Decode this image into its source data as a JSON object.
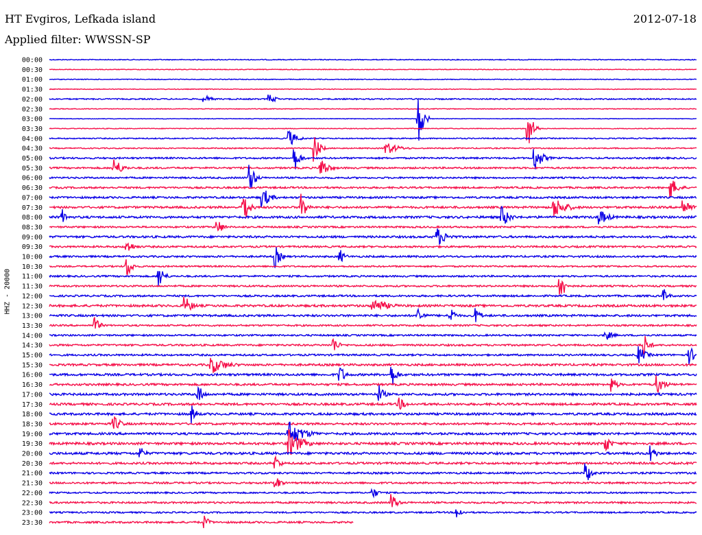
{
  "header": {
    "station": "HT Evgiros, Lefkada island",
    "date": "2012-07-18",
    "filter": "Applied filter: WWSSN-SP"
  },
  "chart_data": {
    "type": "line",
    "title": "HT Evgiros, Lefkada island",
    "ylabel": "HHZ - 20000",
    "grid": false,
    "colors": {
      "even_trace": "#0a00e6",
      "odd_trace": "#f5104a"
    },
    "rows": [
      "00:00",
      "00:30",
      "01:00",
      "01:30",
      "02:00",
      "02:30",
      "03:00",
      "03:30",
      "04:00",
      "04:30",
      "05:00",
      "05:30",
      "06:00",
      "06:30",
      "07:00",
      "07:30",
      "08:00",
      "08:30",
      "09:00",
      "09:30",
      "10:00",
      "10:30",
      "11:00",
      "11:30",
      "12:00",
      "12:30",
      "13:00",
      "13:30",
      "14:00",
      "14:30",
      "15:00",
      "15:30",
      "16:00",
      "16:30",
      "17:00",
      "17:30",
      "18:00",
      "18:30",
      "19:00",
      "19:30",
      "20:00",
      "20:30",
      "21:00",
      "21:30",
      "22:00",
      "22:30",
      "23:00",
      "23:30"
    ],
    "row_noise": [
      0.6,
      0.5,
      0.5,
      0.5,
      0.9,
      0.5,
      0.4,
      0.5,
      0.8,
      0.8,
      1.2,
      1.2,
      1.2,
      1.3,
      1.4,
      1.5,
      1.6,
      1.2,
      1.5,
      1.3,
      1.3,
      1.1,
      1.2,
      1.2,
      1.3,
      1.6,
      1.5,
      1.2,
      1.2,
      1.3,
      1.3,
      1.5,
      1.6,
      1.5,
      1.6,
      1.6,
      1.6,
      1.5,
      1.6,
      1.7,
      1.7,
      1.5,
      1.3,
      1.3,
      1.1,
      1.3,
      1.1,
      1.3
    ],
    "row_extent": [
      1,
      1,
      1,
      1,
      1,
      1,
      1,
      1,
      1,
      1,
      1,
      1,
      1,
      1,
      1,
      1,
      1,
      1,
      1,
      1,
      1,
      1,
      1,
      1,
      1,
      1,
      1,
      1,
      1,
      1,
      1,
      1,
      1,
      1,
      1,
      1,
      1,
      1,
      1,
      1,
      1,
      1,
      1,
      1,
      1,
      1,
      1,
      0.47
    ],
    "events": [
      {
        "row": 4,
        "t": 0.24,
        "amp": 6,
        "dur": 0.03
      },
      {
        "row": 4,
        "t": 0.34,
        "amp": 7,
        "dur": 0.03
      },
      {
        "row": 6,
        "t": 0.57,
        "amp": 40,
        "dur": 0.02
      },
      {
        "row": 7,
        "t": 0.74,
        "amp": 30,
        "dur": 0.02
      },
      {
        "row": 8,
        "t": 0.37,
        "amp": 14,
        "dur": 0.03
      },
      {
        "row": 9,
        "t": 0.52,
        "amp": 10,
        "dur": 0.05
      },
      {
        "row": 9,
        "t": 0.41,
        "amp": 22,
        "dur": 0.02
      },
      {
        "row": 10,
        "t": 0.38,
        "amp": 18,
        "dur": 0.02
      },
      {
        "row": 10,
        "t": 0.75,
        "amp": 20,
        "dur": 0.03
      },
      {
        "row": 11,
        "t": 0.1,
        "amp": 16,
        "dur": 0.03
      },
      {
        "row": 11,
        "t": 0.42,
        "amp": 16,
        "dur": 0.03
      },
      {
        "row": 12,
        "t": 0.31,
        "amp": 24,
        "dur": 0.02
      },
      {
        "row": 13,
        "t": 0.96,
        "amp": 16,
        "dur": 0.03
      },
      {
        "row": 14,
        "t": 0.33,
        "amp": 16,
        "dur": 0.03
      },
      {
        "row": 15,
        "t": 0.3,
        "amp": 30,
        "dur": 0.02
      },
      {
        "row": 15,
        "t": 0.39,
        "amp": 22,
        "dur": 0.02
      },
      {
        "row": 15,
        "t": 0.78,
        "amp": 16,
        "dur": 0.05
      },
      {
        "row": 15,
        "t": 0.98,
        "amp": 14,
        "dur": 0.03
      },
      {
        "row": 16,
        "t": 0.7,
        "amp": 16,
        "dur": 0.03
      },
      {
        "row": 16,
        "t": 0.85,
        "amp": 12,
        "dur": 0.04
      },
      {
        "row": 16,
        "t": 0.02,
        "amp": 12,
        "dur": 0.02
      },
      {
        "row": 17,
        "t": 0.26,
        "amp": 14,
        "dur": 0.02
      },
      {
        "row": 18,
        "t": 0.6,
        "amp": 14,
        "dur": 0.04
      },
      {
        "row": 19,
        "t": 0.12,
        "amp": 10,
        "dur": 0.03
      },
      {
        "row": 20,
        "t": 0.35,
        "amp": 16,
        "dur": 0.02
      },
      {
        "row": 20,
        "t": 0.45,
        "amp": 10,
        "dur": 0.02
      },
      {
        "row": 21,
        "t": 0.12,
        "amp": 18,
        "dur": 0.02
      },
      {
        "row": 22,
        "t": 0.17,
        "amp": 18,
        "dur": 0.02
      },
      {
        "row": 23,
        "t": 0.79,
        "amp": 24,
        "dur": 0.02
      },
      {
        "row": 24,
        "t": 0.95,
        "amp": 10,
        "dur": 0.02
      },
      {
        "row": 25,
        "t": 0.21,
        "amp": 14,
        "dur": 0.03
      },
      {
        "row": 25,
        "t": 0.5,
        "amp": 12,
        "dur": 0.06
      },
      {
        "row": 26,
        "t": 0.57,
        "amp": 14,
        "dur": 0.02
      },
      {
        "row": 26,
        "t": 0.62,
        "amp": 14,
        "dur": 0.02
      },
      {
        "row": 26,
        "t": 0.66,
        "amp": 12,
        "dur": 0.02
      },
      {
        "row": 27,
        "t": 0.07,
        "amp": 14,
        "dur": 0.02
      },
      {
        "row": 28,
        "t": 0.86,
        "amp": 8,
        "dur": 0.03
      },
      {
        "row": 29,
        "t": 0.44,
        "amp": 12,
        "dur": 0.02
      },
      {
        "row": 29,
        "t": 0.92,
        "amp": 16,
        "dur": 0.02
      },
      {
        "row": 30,
        "t": 0.91,
        "amp": 14,
        "dur": 0.03
      },
      {
        "row": 30,
        "t": 0.99,
        "amp": 14,
        "dur": 0.02
      },
      {
        "row": 31,
        "t": 0.25,
        "amp": 14,
        "dur": 0.06
      },
      {
        "row": 32,
        "t": 0.45,
        "amp": 14,
        "dur": 0.02
      },
      {
        "row": 32,
        "t": 0.53,
        "amp": 16,
        "dur": 0.02
      },
      {
        "row": 33,
        "t": 0.87,
        "amp": 12,
        "dur": 0.02
      },
      {
        "row": 33,
        "t": 0.94,
        "amp": 14,
        "dur": 0.03
      },
      {
        "row": 34,
        "t": 0.23,
        "amp": 16,
        "dur": 0.02
      },
      {
        "row": 34,
        "t": 0.51,
        "amp": 14,
        "dur": 0.02
      },
      {
        "row": 35,
        "t": 0.54,
        "amp": 10,
        "dur": 0.03
      },
      {
        "row": 36,
        "t": 0.22,
        "amp": 14,
        "dur": 0.02
      },
      {
        "row": 37,
        "t": 0.1,
        "amp": 12,
        "dur": 0.03
      },
      {
        "row": 38,
        "t": 0.37,
        "amp": 20,
        "dur": 0.06
      },
      {
        "row": 39,
        "t": 0.37,
        "amp": 22,
        "dur": 0.05
      },
      {
        "row": 39,
        "t": 0.86,
        "amp": 14,
        "dur": 0.02
      },
      {
        "row": 40,
        "t": 0.14,
        "amp": 12,
        "dur": 0.02
      },
      {
        "row": 40,
        "t": 0.93,
        "amp": 14,
        "dur": 0.02
      },
      {
        "row": 41,
        "t": 0.35,
        "amp": 12,
        "dur": 0.02
      },
      {
        "row": 42,
        "t": 0.83,
        "amp": 16,
        "dur": 0.02
      },
      {
        "row": 43,
        "t": 0.35,
        "amp": 12,
        "dur": 0.02
      },
      {
        "row": 44,
        "t": 0.5,
        "amp": 10,
        "dur": 0.02
      },
      {
        "row": 45,
        "t": 0.53,
        "amp": 14,
        "dur": 0.02
      },
      {
        "row": 46,
        "t": 0.63,
        "amp": 10,
        "dur": 0.02
      },
      {
        "row": 47,
        "t": 0.24,
        "amp": 10,
        "dur": 0.02
      }
    ]
  }
}
